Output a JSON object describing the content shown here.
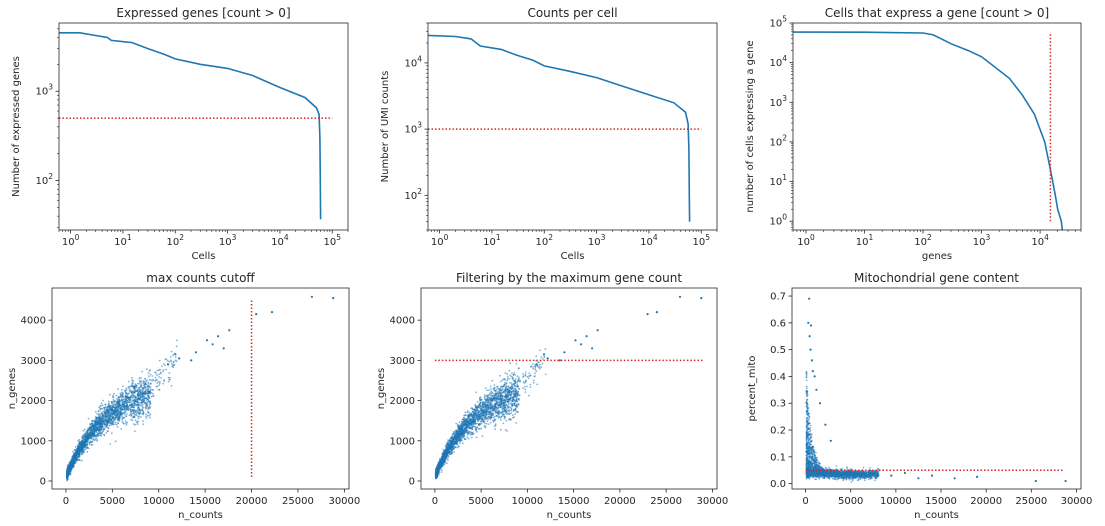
{
  "colors": {
    "series": "#1f77b4",
    "threshold": "#d62728"
  },
  "chart_data": [
    {
      "type": "line",
      "title": "Expressed genes [count > 0]",
      "xlabel": "Cells",
      "ylabel": "Number of expressed genes",
      "xscale": "log",
      "yscale": "log",
      "xlim": [
        0.6,
        200000
      ],
      "ylim": [
        28,
        5800
      ],
      "xticks": [
        1,
        10,
        100,
        1000,
        10000,
        100000
      ],
      "xtick_labels": [
        [
          "10",
          "0"
        ],
        [
          "10",
          "1"
        ],
        [
          "10",
          "2"
        ],
        [
          "10",
          "3"
        ],
        [
          "10",
          "4"
        ],
        [
          "10",
          "5"
        ]
      ],
      "yticks": [
        100,
        1000
      ],
      "ytick_labels": [
        [
          "10",
          "2"
        ],
        [
          "10",
          "3"
        ]
      ],
      "series": [
        {
          "points": [
            [
              0.6,
              4500
            ],
            [
              1.5,
              4500
            ],
            [
              3,
              4200
            ],
            [
              5,
              4000
            ],
            [
              6,
              3700
            ],
            [
              15,
              3500
            ],
            [
              30,
              3000
            ],
            [
              60,
              2600
            ],
            [
              100,
              2300
            ],
            [
              300,
              2000
            ],
            [
              1000,
              1800
            ],
            [
              3000,
              1500
            ],
            [
              10000,
              1100
            ],
            [
              30000,
              850
            ],
            [
              50000,
              650
            ],
            [
              56000,
              550
            ],
            [
              58000,
              300
            ],
            [
              59000,
              100
            ],
            [
              60000,
              37
            ]
          ]
        }
      ],
      "threshold": {
        "orientation": "horizontal",
        "value": 500,
        "from": 0.6,
        "to": 100000
      }
    },
    {
      "type": "line",
      "title": "Counts per cell",
      "xlabel": "Cells",
      "ylabel": "Number of UMI counts",
      "xscale": "log",
      "yscale": "log",
      "xlim": [
        0.6,
        200000
      ],
      "ylim": [
        30,
        40000
      ],
      "xticks": [
        1,
        10,
        100,
        1000,
        10000,
        100000
      ],
      "xtick_labels": [
        [
          "10",
          "0"
        ],
        [
          "10",
          "1"
        ],
        [
          "10",
          "2"
        ],
        [
          "10",
          "3"
        ],
        [
          "10",
          "4"
        ],
        [
          "10",
          "5"
        ]
      ],
      "yticks": [
        100,
        1000,
        10000
      ],
      "ytick_labels": [
        [
          "10",
          "2"
        ],
        [
          "10",
          "3"
        ],
        [
          "10",
          "4"
        ]
      ],
      "series": [
        {
          "points": [
            [
              0.6,
              26000
            ],
            [
              2,
              25000
            ],
            [
              4,
              23000
            ],
            [
              6,
              18000
            ],
            [
              15,
              16000
            ],
            [
              30,
              13000
            ],
            [
              60,
              11000
            ],
            [
              100,
              9000
            ],
            [
              300,
              7500
            ],
            [
              1000,
              6000
            ],
            [
              3000,
              4500
            ],
            [
              10000,
              3300
            ],
            [
              30000,
              2500
            ],
            [
              50000,
              1800
            ],
            [
              56000,
              1200
            ],
            [
              58000,
              500
            ],
            [
              59000,
              100
            ],
            [
              60000,
              40
            ]
          ]
        }
      ],
      "threshold": {
        "orientation": "horizontal",
        "value": 1000,
        "from": 0.6,
        "to": 100000
      }
    },
    {
      "type": "line",
      "title": "Cells that express a gene [count > 0]",
      "xlabel": "genes",
      "ylabel": "number of cells expressing a gene",
      "xscale": "log",
      "yscale": "log",
      "xlim": [
        0.6,
        50000
      ],
      "ylim": [
        0.6,
        100000
      ],
      "xticks": [
        1,
        10,
        100,
        1000,
        10000
      ],
      "xtick_labels": [
        [
          "10",
          "0"
        ],
        [
          "10",
          "1"
        ],
        [
          "10",
          "2"
        ],
        [
          "10",
          "3"
        ],
        [
          "10",
          "4"
        ]
      ],
      "yticks": [
        1,
        10,
        100,
        1000,
        10000,
        100000
      ],
      "ytick_labels": [
        [
          "10",
          "0"
        ],
        [
          "10",
          "1"
        ],
        [
          "10",
          "2"
        ],
        [
          "10",
          "3"
        ],
        [
          "10",
          "4"
        ],
        [
          "10",
          "5"
        ]
      ],
      "series": [
        {
          "points": [
            [
              0.6,
              59000
            ],
            [
              10,
              58500
            ],
            [
              100,
              56000
            ],
            [
              150,
              50000
            ],
            [
              300,
              30000
            ],
            [
              600,
              20000
            ],
            [
              1000,
              14000
            ],
            [
              3000,
              4000
            ],
            [
              5000,
              1500
            ],
            [
              8000,
              500
            ],
            [
              12000,
              100
            ],
            [
              15000,
              20
            ],
            [
              18000,
              5
            ],
            [
              20000,
              2
            ],
            [
              23000,
              1
            ],
            [
              24000,
              0.6
            ]
          ]
        }
      ],
      "threshold": {
        "orientation": "vertical",
        "value": 15000,
        "from": 1,
        "to": 59000
      }
    },
    {
      "type": "scatter",
      "title": "max counts cutoff",
      "xlabel": "n_counts",
      "ylabel": "n_genes",
      "xscale": "linear",
      "yscale": "linear",
      "xlim": [
        -1500,
        30500
      ],
      "ylim": [
        -200,
        4800
      ],
      "xticks": [
        0,
        5000,
        10000,
        15000,
        20000,
        25000,
        30000
      ],
      "xtick_labels": [
        [
          "0"
        ],
        [
          "5000"
        ],
        [
          "10000"
        ],
        [
          "15000"
        ],
        [
          "20000"
        ],
        [
          "25000"
        ],
        [
          "30000"
        ]
      ],
      "yticks": [
        0,
        1000,
        2000,
        3000,
        4000
      ],
      "ytick_labels": [
        [
          "0"
        ],
        [
          "1000"
        ],
        [
          "2000"
        ],
        [
          "3000"
        ],
        [
          "4000"
        ]
      ],
      "cloud": "genes_vs_counts",
      "series": [
        {
          "points": [
            [
              11000,
              2900
            ],
            [
              11800,
              3150
            ],
            [
              12200,
              3050
            ],
            [
              13500,
              3000
            ],
            [
              14000,
              3200
            ],
            [
              15200,
              3500
            ],
            [
              15800,
              3400
            ],
            [
              16400,
              3600
            ],
            [
              17000,
              3300
            ],
            [
              17600,
              3750
            ],
            [
              20500,
              4150
            ],
            [
              22200,
              4200
            ],
            [
              26500,
              4580
            ],
            [
              28800,
              4550
            ]
          ]
        }
      ],
      "threshold": {
        "orientation": "vertical",
        "value": 20000,
        "from": 100,
        "to": 4500
      }
    },
    {
      "type": "scatter",
      "title": "Filtering by the maximum gene count",
      "xlabel": "n_counts",
      "ylabel": "n_genes",
      "xscale": "linear",
      "yscale": "linear",
      "xlim": [
        -1500,
        30500
      ],
      "ylim": [
        -200,
        4800
      ],
      "xticks": [
        0,
        5000,
        10000,
        15000,
        20000,
        25000,
        30000
      ],
      "xtick_labels": [
        [
          "0"
        ],
        [
          "5000"
        ],
        [
          "10000"
        ],
        [
          "15000"
        ],
        [
          "20000"
        ],
        [
          "25000"
        ],
        [
          "30000"
        ]
      ],
      "yticks": [
        0,
        1000,
        2000,
        3000,
        4000
      ],
      "ytick_labels": [
        [
          "0"
        ],
        [
          "1000"
        ],
        [
          "2000"
        ],
        [
          "3000"
        ],
        [
          "4000"
        ]
      ],
      "cloud": "genes_vs_counts",
      "series": [
        {
          "points": [
            [
              11000,
              2900
            ],
            [
              11800,
              3150
            ],
            [
              12200,
              3050
            ],
            [
              13500,
              3000
            ],
            [
              14000,
              3200
            ],
            [
              15200,
              3500
            ],
            [
              15800,
              3400
            ],
            [
              16400,
              3600
            ],
            [
              17000,
              3300
            ],
            [
              17600,
              3750
            ],
            [
              23000,
              4150
            ],
            [
              24000,
              4200
            ],
            [
              26500,
              4580
            ],
            [
              28800,
              4550
            ]
          ]
        }
      ],
      "threshold": {
        "orientation": "horizontal",
        "value": 3000,
        "from": 0,
        "to": 29000
      }
    },
    {
      "type": "scatter",
      "title": "Mitochondrial gene content",
      "xlabel": "n_counts",
      "ylabel": "percent_mito",
      "xscale": "linear",
      "yscale": "linear",
      "xlim": [
        -1500,
        30500
      ],
      "ylim": [
        -0.02,
        0.73
      ],
      "xticks": [
        0,
        5000,
        10000,
        15000,
        20000,
        25000,
        30000
      ],
      "xtick_labels": [
        [
          "0"
        ],
        [
          "5000"
        ],
        [
          "10000"
        ],
        [
          "15000"
        ],
        [
          "20000"
        ],
        [
          "25000"
        ],
        [
          "30000"
        ]
      ],
      "yticks": [
        0,
        0.1,
        0.2,
        0.3,
        0.4,
        0.5,
        0.6,
        0.7
      ],
      "ytick_labels": [
        [
          "0.0"
        ],
        [
          "0.1"
        ],
        [
          "0.2"
        ],
        [
          "0.3"
        ],
        [
          "0.4"
        ],
        [
          "0.5"
        ],
        [
          "0.6"
        ],
        [
          "0.7"
        ]
      ],
      "cloud": "mito_vs_counts",
      "series": [
        {
          "points": [
            [
              400,
              0.69
            ],
            [
              300,
              0.6
            ],
            [
              600,
              0.59
            ],
            [
              450,
              0.55
            ],
            [
              550,
              0.5
            ],
            [
              700,
              0.46
            ],
            [
              800,
              0.42
            ],
            [
              1000,
              0.4
            ],
            [
              1200,
              0.35
            ],
            [
              1600,
              0.3
            ],
            [
              2200,
              0.22
            ],
            [
              2800,
              0.16
            ],
            [
              9500,
              0.03
            ],
            [
              11000,
              0.04
            ],
            [
              12500,
              0.02
            ],
            [
              14000,
              0.03
            ],
            [
              16500,
              0.02
            ],
            [
              19000,
              0.025
            ],
            [
              25500,
              0.01
            ],
            [
              28800,
              0.01
            ]
          ]
        }
      ],
      "threshold": {
        "orientation": "horizontal",
        "value": 0.05,
        "from": 0,
        "to": 28500
      }
    }
  ]
}
